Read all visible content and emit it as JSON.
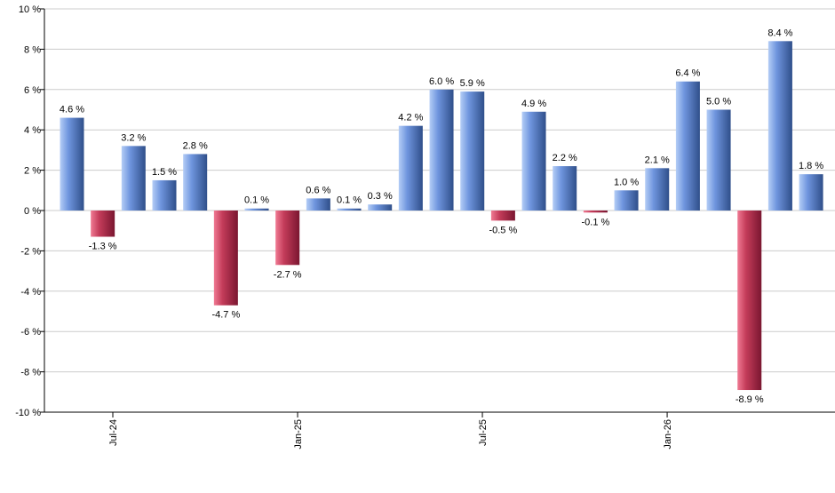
{
  "chart_data": {
    "type": "bar",
    "title": "",
    "xlabel": "",
    "ylabel": "",
    "ylim": [
      -10,
      10
    ],
    "ytick_step": 2,
    "value_suffix": " %",
    "grid": true,
    "x_tick_labels": [
      "Jul-24",
      "Jan-25",
      "Jul-25",
      "Jan-26"
    ],
    "values": [
      4.6,
      -1.3,
      3.2,
      1.5,
      2.8,
      -4.7,
      0.1,
      -2.7,
      0.6,
      0.1,
      0.3,
      4.2,
      6.0,
      5.9,
      -0.5,
      4.9,
      2.2,
      -0.1,
      1.0,
      2.1,
      6.4,
      5.0,
      -8.9,
      8.4,
      1.8
    ],
    "value_labels": [
      "4.6 %",
      "-1.3 %",
      "3.2 %",
      "1.5 %",
      "2.8 %",
      "-4.7 %",
      "0.1 %",
      "-2.7 %",
      "0.6 %",
      "0.1 %",
      "0.3 %",
      "4.2 %",
      "6.0 %",
      "5.9 %",
      "-0.5 %",
      "4.9 %",
      "2.2 %",
      "-0.1 %",
      "1.0 %",
      "2.1 %",
      "6.4 %",
      "5.0 %",
      "-8.9 %",
      "8.4 %",
      "1.8 %"
    ],
    "colors": {
      "positive": "#6f95de",
      "positive_light": "#b4cdf6",
      "positive_dark": "#2f4f8a",
      "negative": "#c43c5a",
      "negative_light": "#f07a93",
      "negative_dark": "#7a1630",
      "grid": "#cccccc",
      "axis": "#000000"
    }
  }
}
